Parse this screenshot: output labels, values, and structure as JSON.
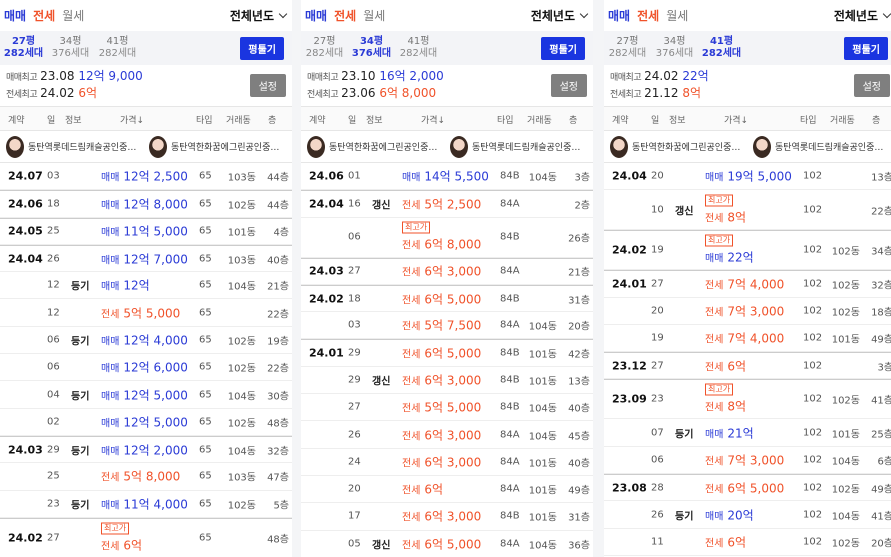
{
  "panels": [
    {
      "tabs": {
        "sale": "매매",
        "jeonse": "전세",
        "monthly": "월세"
      },
      "year_filter": "전체년도",
      "sizes": [
        {
          "pyeong": "27평",
          "units": "282세대",
          "selected": true
        },
        {
          "pyeong": "34평",
          "units": "376세대",
          "selected": false
        },
        {
          "pyeong": "41평",
          "units": "282세대",
          "selected": false
        }
      ],
      "pyeong_button": "평툴기",
      "max_sale": {
        "label": "매매최고",
        "date": "23.08",
        "price": "12억 9,000"
      },
      "max_jeonse": {
        "label": "전세최고",
        "date": "24.02",
        "price": "6억"
      },
      "settings_button": "설정",
      "headers": {
        "contract": "계약",
        "day": "일",
        "info": "정보",
        "price": "가격↓",
        "type": "타입",
        "dong": "거래동",
        "floor": "층"
      },
      "brokers": [
        "동탄역롯데드림캐슬공인중개사",
        "동탄역한화꿈에그린공인중개사"
      ],
      "rows": [
        {
          "month": "24.07",
          "day": "03",
          "info": "",
          "badge": "",
          "type_label": "매매",
          "price": "12억 2,500",
          "kind": "s",
          "unit_type": "65",
          "dong": "103동",
          "floor": "44층",
          "tall": false,
          "sep": false
        },
        {
          "month": "24.06",
          "day": "18",
          "info": "",
          "badge": "",
          "type_label": "매매",
          "price": "12억 8,000",
          "kind": "s",
          "unit_type": "65",
          "dong": "102동",
          "floor": "44층",
          "tall": false,
          "sep": true
        },
        {
          "month": "24.05",
          "day": "25",
          "info": "",
          "badge": "",
          "type_label": "매매",
          "price": "11억 5,000",
          "kind": "s",
          "unit_type": "65",
          "dong": "101동",
          "floor": "4층",
          "tall": false,
          "sep": true
        },
        {
          "month": "24.04",
          "day": "26",
          "info": "",
          "badge": "",
          "type_label": "매매",
          "price": "12억 7,000",
          "kind": "s",
          "unit_type": "65",
          "dong": "103동",
          "floor": "40층",
          "tall": false,
          "sep": true
        },
        {
          "month": "",
          "day": "12",
          "info": "등기",
          "badge": "",
          "type_label": "매매",
          "price": "12억",
          "kind": "s",
          "unit_type": "65",
          "dong": "104동",
          "floor": "21층",
          "tall": false,
          "sep": false
        },
        {
          "month": "",
          "day": "12",
          "info": "",
          "badge": "",
          "type_label": "전세",
          "price": "5억 5,000",
          "kind": "j",
          "unit_type": "65",
          "dong": "",
          "floor": "22층",
          "tall": false,
          "sep": false
        },
        {
          "month": "",
          "day": "06",
          "info": "등기",
          "badge": "",
          "type_label": "매매",
          "price": "12억 4,000",
          "kind": "s",
          "unit_type": "65",
          "dong": "102동",
          "floor": "19층",
          "tall": false,
          "sep": false
        },
        {
          "month": "",
          "day": "06",
          "info": "",
          "badge": "",
          "type_label": "매매",
          "price": "12억 6,000",
          "kind": "s",
          "unit_type": "65",
          "dong": "102동",
          "floor": "22층",
          "tall": false,
          "sep": false
        },
        {
          "month": "",
          "day": "04",
          "info": "등기",
          "badge": "",
          "type_label": "매매",
          "price": "12억 5,000",
          "kind": "s",
          "unit_type": "65",
          "dong": "104동",
          "floor": "30층",
          "tall": false,
          "sep": false
        },
        {
          "month": "",
          "day": "02",
          "info": "",
          "badge": "",
          "type_label": "매매",
          "price": "12억 5,000",
          "kind": "s",
          "unit_type": "65",
          "dong": "102동",
          "floor": "48층",
          "tall": false,
          "sep": false
        },
        {
          "month": "24.03",
          "day": "29",
          "info": "등기",
          "badge": "",
          "type_label": "매매",
          "price": "12억 2,000",
          "kind": "s",
          "unit_type": "65",
          "dong": "104동",
          "floor": "32층",
          "tall": false,
          "sep": true
        },
        {
          "month": "",
          "day": "25",
          "info": "",
          "badge": "",
          "type_label": "전세",
          "price": "5억 8,000",
          "kind": "j",
          "unit_type": "65",
          "dong": "103동",
          "floor": "47층",
          "tall": false,
          "sep": false
        },
        {
          "month": "",
          "day": "23",
          "info": "등기",
          "badge": "",
          "type_label": "매매",
          "price": "11억 4,000",
          "kind": "s",
          "unit_type": "65",
          "dong": "102동",
          "floor": "5층",
          "tall": false,
          "sep": false
        },
        {
          "month": "24.02",
          "day": "27",
          "info": "",
          "badge": "최고가",
          "type_label": "전세",
          "price": "6억",
          "kind": "j",
          "unit_type": "65",
          "dong": "",
          "floor": "48층",
          "tall": true,
          "sep": true
        }
      ]
    },
    {
      "tabs": {
        "sale": "매매",
        "jeonse": "전세",
        "monthly": "월세"
      },
      "year_filter": "전체년도",
      "sizes": [
        {
          "pyeong": "27평",
          "units": "282세대",
          "selected": false
        },
        {
          "pyeong": "34평",
          "units": "376세대",
          "selected": true
        },
        {
          "pyeong": "41평",
          "units": "282세대",
          "selected": false
        }
      ],
      "pyeong_button": "평툴기",
      "max_sale": {
        "label": "매매최고",
        "date": "23.10",
        "price": "16억 2,000"
      },
      "max_jeonse": {
        "label": "전세최고",
        "date": "23.06",
        "price": "6억 8,000"
      },
      "settings_button": "설정",
      "headers": {
        "contract": "계약",
        "day": "일",
        "info": "정보",
        "price": "가격↓",
        "type": "타입",
        "dong": "거래동",
        "floor": "층"
      },
      "brokers": [
        "동탄역한화꿈에그린공인중개사",
        "동탄역롯데드림캐슬공인중개사"
      ],
      "rows": [
        {
          "month": "24.06",
          "day": "01",
          "info": "",
          "badge": "",
          "type_label": "매매",
          "price": "14억 5,500",
          "kind": "s",
          "unit_type": "84B",
          "dong": "104동",
          "floor": "3층",
          "tall": false,
          "sep": false
        },
        {
          "month": "24.04",
          "day": "16",
          "info": "갱신",
          "badge": "",
          "type_label": "전세",
          "price": "5억 2,500",
          "kind": "j",
          "unit_type": "84A",
          "dong": "",
          "floor": "2층",
          "tall": false,
          "sep": true
        },
        {
          "month": "",
          "day": "06",
          "info": "",
          "badge": "최고가",
          "type_label": "전세",
          "price": "6억 8,000",
          "kind": "j",
          "unit_type": "84B",
          "dong": "",
          "floor": "26층",
          "tall": true,
          "sep": false
        },
        {
          "month": "24.03",
          "day": "27",
          "info": "",
          "badge": "",
          "type_label": "전세",
          "price": "6억 3,000",
          "kind": "j",
          "unit_type": "84A",
          "dong": "",
          "floor": "21층",
          "tall": false,
          "sep": true
        },
        {
          "month": "24.02",
          "day": "18",
          "info": "",
          "badge": "",
          "type_label": "전세",
          "price": "6억 5,000",
          "kind": "j",
          "unit_type": "84B",
          "dong": "",
          "floor": "31층",
          "tall": false,
          "sep": true
        },
        {
          "month": "",
          "day": "03",
          "info": "",
          "badge": "",
          "type_label": "전세",
          "price": "5억 7,500",
          "kind": "j",
          "unit_type": "84A",
          "dong": "104동",
          "floor": "20층",
          "tall": false,
          "sep": false
        },
        {
          "month": "24.01",
          "day": "29",
          "info": "",
          "badge": "",
          "type_label": "전세",
          "price": "6억 5,000",
          "kind": "j",
          "unit_type": "84B",
          "dong": "101동",
          "floor": "42층",
          "tall": false,
          "sep": true
        },
        {
          "month": "",
          "day": "29",
          "info": "갱신",
          "badge": "",
          "type_label": "전세",
          "price": "6억 3,000",
          "kind": "j",
          "unit_type": "84B",
          "dong": "101동",
          "floor": "13층",
          "tall": false,
          "sep": false
        },
        {
          "month": "",
          "day": "27",
          "info": "",
          "badge": "",
          "type_label": "전세",
          "price": "5억 5,000",
          "kind": "j",
          "unit_type": "84B",
          "dong": "104동",
          "floor": "40층",
          "tall": false,
          "sep": false
        },
        {
          "month": "",
          "day": "26",
          "info": "",
          "badge": "",
          "type_label": "전세",
          "price": "6억 3,000",
          "kind": "j",
          "unit_type": "84A",
          "dong": "104동",
          "floor": "45층",
          "tall": false,
          "sep": false
        },
        {
          "month": "",
          "day": "24",
          "info": "",
          "badge": "",
          "type_label": "전세",
          "price": "6억 3,000",
          "kind": "j",
          "unit_type": "84A",
          "dong": "101동",
          "floor": "40층",
          "tall": false,
          "sep": false
        },
        {
          "month": "",
          "day": "20",
          "info": "",
          "badge": "",
          "type_label": "전세",
          "price": "6억",
          "kind": "j",
          "unit_type": "84A",
          "dong": "101동",
          "floor": "49층",
          "tall": false,
          "sep": false
        },
        {
          "month": "",
          "day": "17",
          "info": "",
          "badge": "",
          "type_label": "전세",
          "price": "6억 3,000",
          "kind": "j",
          "unit_type": "84B",
          "dong": "101동",
          "floor": "31층",
          "tall": false,
          "sep": false
        },
        {
          "month": "",
          "day": "05",
          "info": "갱신",
          "badge": "",
          "type_label": "전세",
          "price": "6억 5,000",
          "kind": "j",
          "unit_type": "84A",
          "dong": "104동",
          "floor": "36층",
          "tall": false,
          "sep": false
        }
      ]
    },
    {
      "tabs": {
        "sale": "매매",
        "jeonse": "전세",
        "monthly": "월세"
      },
      "year_filter": "전체년도",
      "sizes": [
        {
          "pyeong": "27평",
          "units": "282세대",
          "selected": false
        },
        {
          "pyeong": "34평",
          "units": "376세대",
          "selected": false
        },
        {
          "pyeong": "41평",
          "units": "282세대",
          "selected": true
        }
      ],
      "pyeong_button": "평툴기",
      "max_sale": {
        "label": "매매최고",
        "date": "24.02",
        "price": "22억"
      },
      "max_jeonse": {
        "label": "전세최고",
        "date": "21.12",
        "price": "8억"
      },
      "settings_button": "설정",
      "headers": {
        "contract": "계약",
        "day": "일",
        "info": "정보",
        "price": "가격↓",
        "type": "타입",
        "dong": "거래동",
        "floor": "층"
      },
      "brokers": [
        "동탄역한화꿈에그린공인중개사",
        "동탄역롯데드림캐슬공인중개사"
      ],
      "rows": [
        {
          "month": "24.04",
          "day": "20",
          "info": "",
          "badge": "",
          "type_label": "매매",
          "price": "19억 5,000",
          "kind": "s",
          "unit_type": "102",
          "dong": "",
          "floor": "13층",
          "tall": false,
          "sep": false
        },
        {
          "month": "",
          "day": "10",
          "info": "갱신",
          "badge": "최고가",
          "type_label": "전세",
          "price": "8억",
          "kind": "j",
          "unit_type": "102",
          "dong": "",
          "floor": "22층",
          "tall": true,
          "sep": false
        },
        {
          "month": "24.02",
          "day": "19",
          "info": "",
          "badge": "최고가",
          "type_label": "매매",
          "price": "22억",
          "kind": "s",
          "unit_type": "102",
          "dong": "102동",
          "floor": "34층",
          "tall": true,
          "sep": true
        },
        {
          "month": "24.01",
          "day": "27",
          "info": "",
          "badge": "",
          "type_label": "전세",
          "price": "7억 4,000",
          "kind": "j",
          "unit_type": "102",
          "dong": "102동",
          "floor": "32층",
          "tall": false,
          "sep": true
        },
        {
          "month": "",
          "day": "20",
          "info": "",
          "badge": "",
          "type_label": "전세",
          "price": "7억 3,000",
          "kind": "j",
          "unit_type": "102",
          "dong": "102동",
          "floor": "18층",
          "tall": false,
          "sep": false
        },
        {
          "month": "",
          "day": "19",
          "info": "",
          "badge": "",
          "type_label": "전세",
          "price": "7억 4,000",
          "kind": "j",
          "unit_type": "102",
          "dong": "101동",
          "floor": "49층",
          "tall": false,
          "sep": false
        },
        {
          "month": "23.12",
          "day": "27",
          "info": "",
          "badge": "",
          "type_label": "전세",
          "price": "6억",
          "kind": "j",
          "unit_type": "102",
          "dong": "",
          "floor": "3층",
          "tall": false,
          "sep": true
        },
        {
          "month": "23.09",
          "day": "23",
          "info": "",
          "badge": "최고가",
          "type_label": "전세",
          "price": "8억",
          "kind": "j",
          "unit_type": "102",
          "dong": "102동",
          "floor": "41층",
          "tall": true,
          "sep": true
        },
        {
          "month": "",
          "day": "07",
          "info": "등기",
          "badge": "",
          "type_label": "매매",
          "price": "21억",
          "kind": "s",
          "unit_type": "102",
          "dong": "101동",
          "floor": "25층",
          "tall": false,
          "sep": false
        },
        {
          "month": "",
          "day": "06",
          "info": "",
          "badge": "",
          "type_label": "전세",
          "price": "7억 3,000",
          "kind": "j",
          "unit_type": "102",
          "dong": "104동",
          "floor": "6층",
          "tall": false,
          "sep": false
        },
        {
          "month": "23.08",
          "day": "28",
          "info": "",
          "badge": "",
          "type_label": "전세",
          "price": "6억 5,000",
          "kind": "j",
          "unit_type": "102",
          "dong": "102동",
          "floor": "49층",
          "tall": false,
          "sep": true
        },
        {
          "month": "",
          "day": "26",
          "info": "등기",
          "badge": "",
          "type_label": "매매",
          "price": "20억",
          "kind": "s",
          "unit_type": "102",
          "dong": "104동",
          "floor": "41층",
          "tall": false,
          "sep": false
        },
        {
          "month": "",
          "day": "11",
          "info": "",
          "badge": "",
          "type_label": "전세",
          "price": "6억",
          "kind": "j",
          "unit_type": "102",
          "dong": "102동",
          "floor": "20층",
          "tall": false,
          "sep": false
        }
      ]
    }
  ]
}
